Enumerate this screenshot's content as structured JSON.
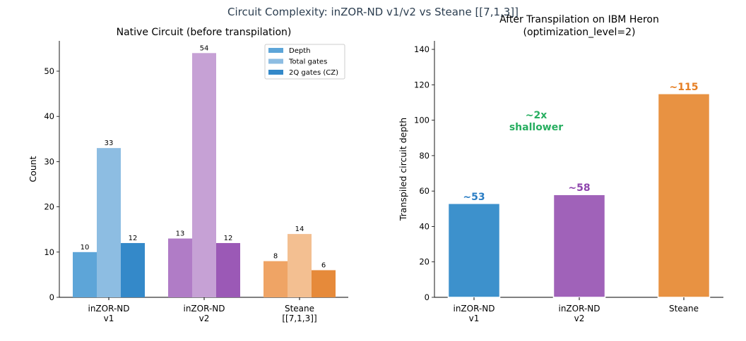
{
  "suptitle": "Circuit Complexity: inZOR-ND v1/v2 vs Steane [[7,1,3]]",
  "chart_data": [
    {
      "type": "bar",
      "title": "Native Circuit (before transpilation)",
      "xlabel": "",
      "ylabel": "Count",
      "ylim": [
        0,
        56.7
      ],
      "yticks": [
        0,
        10,
        20,
        30,
        40,
        50
      ],
      "categories": [
        "inZOR-ND\nv1",
        "inZOR-ND\nv2",
        "Steane\n[[7,1,3]]"
      ],
      "legend": {
        "placement": "upper right",
        "entries": [
          "Depth",
          "Total gates",
          "2Q gates (CZ)"
        ]
      },
      "series": [
        {
          "name": "Depth",
          "values": [
            10,
            13,
            8
          ],
          "colors": [
            "#5da5d8",
            "#b07cc6",
            "#efa465"
          ]
        },
        {
          "name": "Total gates",
          "values": [
            33,
            54,
            14
          ],
          "colors": [
            "#8dbde2",
            "#c6a1d5",
            "#f3bf91"
          ]
        },
        {
          "name": "2Q gates (CZ)",
          "values": [
            12,
            12,
            6
          ],
          "colors": [
            "#3489c9",
            "#9b59b6",
            "#e68a3a"
          ]
        }
      ],
      "legend_colors": [
        "#5da5d8",
        "#8dbde2",
        "#3489c9"
      ]
    },
    {
      "type": "bar",
      "title": "After Transpilation on IBM Heron\n(optimization_level=2)",
      "xlabel": "",
      "ylabel": "Transpiled circuit depth",
      "ylim": [
        0,
        144.8
      ],
      "yticks": [
        0,
        20,
        40,
        60,
        80,
        100,
        120,
        140
      ],
      "categories": [
        "inZOR-ND\nv1",
        "inZOR-ND\nv2",
        "Steane"
      ],
      "values": [
        53,
        58,
        115
      ],
      "data_labels": [
        "~53",
        "~58",
        "~115"
      ],
      "colors": [
        "#3d91cc",
        "#a062b9",
        "#e89242"
      ],
      "label_colors": [
        "#2a7dc4",
        "#8e44ad",
        "#e67e22"
      ],
      "annotation": {
        "text": "~2x\nshallower",
        "color": "#27ae60"
      }
    }
  ]
}
